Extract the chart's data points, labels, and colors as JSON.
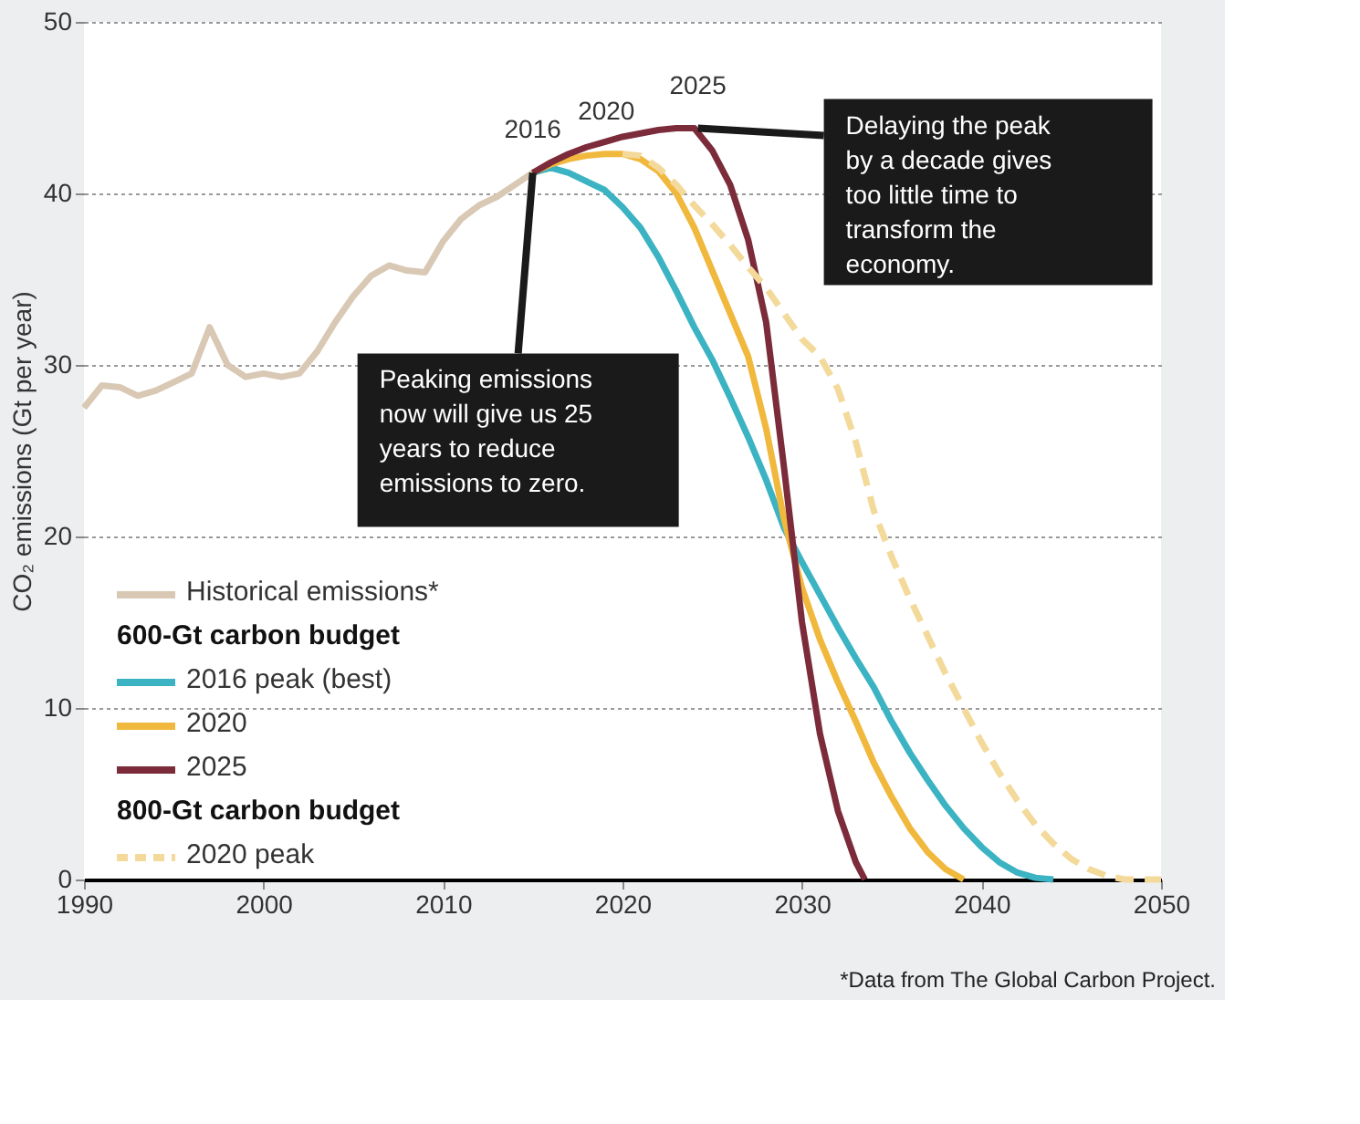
{
  "chart_data": {
    "type": "line",
    "ylabel": "CO₂ emissions (Gt per year)",
    "xlim": [
      1990,
      2050
    ],
    "xticks": [
      1990,
      2000,
      2010,
      2020,
      2030,
      2040,
      2050
    ],
    "ylim": [
      0,
      50
    ],
    "yticks": [
      0,
      10,
      20,
      30,
      40,
      50
    ],
    "grid": "y",
    "legend": "bottom left",
    "marker": "none",
    "series": [
      {
        "name": "Historical emissions*",
        "color": "#d8c8b4",
        "line_style": "solid",
        "x": [
          1990,
          1991,
          1992,
          1993,
          1994,
          1995,
          1996,
          1997,
          1998,
          1999,
          2000,
          2001,
          2002,
          2003,
          2004,
          2005,
          2006,
          2007,
          2008,
          2009,
          2010,
          2011,
          2012,
          2013,
          2014,
          2015
        ],
        "values": [
          27.5,
          28.8,
          28.7,
          28.2,
          28.5,
          29.0,
          29.5,
          32.2,
          30.0,
          29.3,
          29.5,
          29.3,
          29.5,
          30.8,
          32.5,
          34.0,
          35.2,
          35.8,
          35.5,
          35.4,
          37.2,
          38.5,
          39.3,
          39.8,
          40.5,
          41.2
        ]
      },
      {
        "name": "2016 peak (best)",
        "color": "#3bb3c3",
        "line_style": "solid",
        "x": [
          2015,
          2016,
          2017,
          2018,
          2019,
          2020,
          2021,
          2022,
          2023,
          2024,
          2025,
          2026,
          2027,
          2028,
          2029,
          2030,
          2031,
          2032,
          2033,
          2034,
          2035,
          2036,
          2037,
          2038,
          2039,
          2040,
          2041,
          2042,
          2043,
          2044
        ],
        "values": [
          41.2,
          41.5,
          41.2,
          40.7,
          40.2,
          39.2,
          38.0,
          36.3,
          34.3,
          32.2,
          30.3,
          28.1,
          25.8,
          23.3,
          20.5,
          18.5,
          16.6,
          14.7,
          12.9,
          11.2,
          9.2,
          7.4,
          5.8,
          4.3,
          3.0,
          1.9,
          1.0,
          0.4,
          0.1,
          0
        ]
      },
      {
        "name": "2020",
        "color": "#f0b83c",
        "line_style": "solid",
        "x": [
          2015,
          2016,
          2017,
          2018,
          2019,
          2020,
          2021,
          2022,
          2023,
          2024,
          2025,
          2026,
          2027,
          2028,
          2029,
          2030,
          2031,
          2032,
          2033,
          2034,
          2035,
          2036,
          2037,
          2038,
          2039
        ],
        "values": [
          41.2,
          41.7,
          42.0,
          42.2,
          42.3,
          42.3,
          42.0,
          41.3,
          40.0,
          38.0,
          35.5,
          33.0,
          30.5,
          26.3,
          21.0,
          17.0,
          14.0,
          11.5,
          9.2,
          6.8,
          4.8,
          3.0,
          1.6,
          0.6,
          0
        ]
      },
      {
        "name": "2025",
        "color": "#7b2b3a",
        "line_style": "solid",
        "x": [
          2015,
          2016,
          2017,
          2018,
          2019,
          2020,
          2021,
          2022,
          2023,
          2024,
          2025,
          2026,
          2027,
          2028,
          2029,
          2030,
          2031,
          2032,
          2033,
          2033.5
        ],
        "values": [
          41.2,
          41.8,
          42.3,
          42.7,
          43.0,
          43.3,
          43.5,
          43.7,
          43.8,
          43.8,
          42.5,
          40.5,
          37.3,
          32.5,
          24.0,
          15.0,
          8.5,
          4.0,
          1.0,
          0
        ]
      },
      {
        "name": "2020 peak",
        "color": "#f3d99a",
        "line_style": "dashed",
        "x": [
          2020,
          2021,
          2022,
          2023,
          2024,
          2025,
          2026,
          2027,
          2028,
          2029,
          2030,
          2031,
          2032,
          2033,
          2034,
          2035,
          2036,
          2037,
          2038,
          2039,
          2040,
          2041,
          2042,
          2043,
          2044,
          2045,
          2046,
          2047,
          2048,
          2050
        ],
        "values": [
          42.3,
          42.2,
          41.5,
          40.5,
          39.3,
          38.2,
          37.0,
          35.7,
          34.5,
          33.0,
          31.5,
          30.5,
          28.6,
          25.5,
          21.5,
          18.8,
          16.4,
          14.2,
          12.0,
          10.0,
          8.0,
          6.2,
          4.6,
          3.2,
          2.1,
          1.2,
          0.6,
          0.2,
          0,
          0
        ]
      }
    ],
    "annotations": [
      {
        "text": "2016",
        "x": 2015,
        "y": 41.2
      },
      {
        "text": "2020",
        "x": 2019.1,
        "y": 42.3
      },
      {
        "text": "2025",
        "x": 2024.2,
        "y": 43.8
      },
      {
        "text": "Peaking emissions now will give us 25 years to reduce emissions to zero.",
        "x": 2015,
        "y": 41.2
      },
      {
        "text": "Delaying the peak by a decade gives too little time to transform the economy.",
        "x": 2024.2,
        "y": 43.8
      },
      "600-Gt carbon budget",
      "800-Gt carbon budget",
      "*Data from The Global Carbon Project."
    ]
  }
}
